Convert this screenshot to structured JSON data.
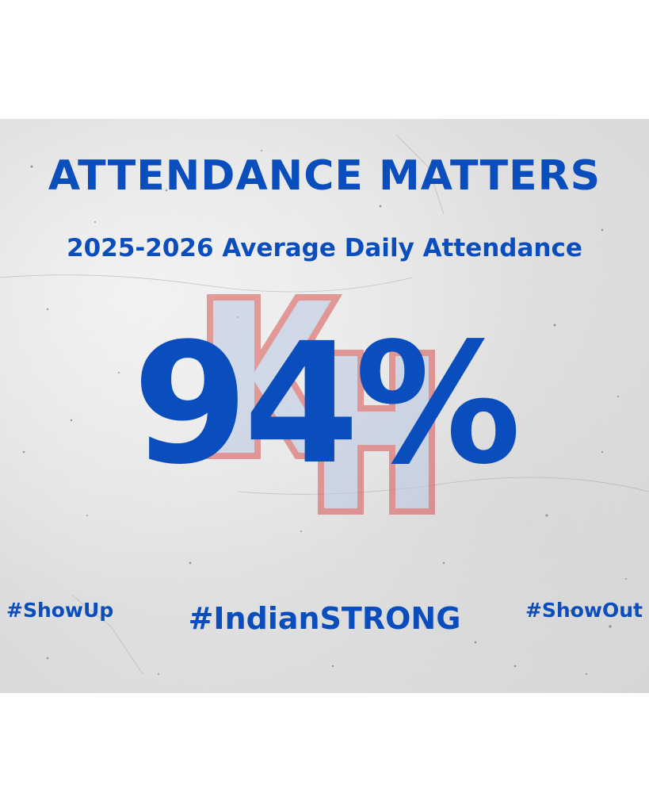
{
  "headline": "ATTENDANCE MATTERS",
  "subheadline": "2025-2026 Average Daily Attendance",
  "attendance_percent": "94%",
  "hashtags": {
    "left": "#ShowUp",
    "center": "#IndianSTRONG",
    "right": "#ShowOut"
  },
  "colors": {
    "text_blue": "#0a4dbd",
    "logo_red": "#d9534f",
    "logo_blue": "#6d8fc4",
    "background": "#e3e3e3"
  },
  "logo": {
    "icon": "school-monogram-logo-icon"
  }
}
